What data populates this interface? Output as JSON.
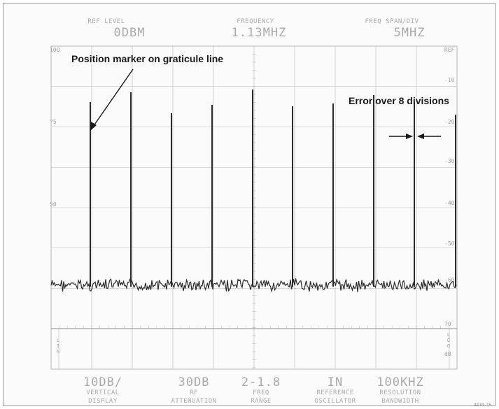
{
  "top_readouts": {
    "ref_level": {
      "label": "REF LEVEL",
      "value": "0DBM"
    },
    "frequency": {
      "label": "FREQUENCY",
      "value": "1.13MHZ"
    },
    "freq_span": {
      "label": "FREQ SPAN/DIV",
      "value": "5MHZ"
    }
  },
  "left_scale": [
    "100",
    "75",
    "50"
  ],
  "right_scale": [
    "REF",
    "-10",
    "-20",
    "-30",
    "-40",
    "-50",
    "-60",
    "-70"
  ],
  "annotations": {
    "position_marker": "Position marker on graticule line",
    "error_over": "Error over 8 divisions"
  },
  "lower_strip": {
    "left_text": "LIN",
    "right_text": "LOG",
    "right_unit": "dB",
    "right_top": "70"
  },
  "bottom_readouts": [
    {
      "value": "10DB/",
      "label1": "VERTICAL",
      "label2": "DISPLAY"
    },
    {
      "value": "30DB",
      "label1": "RF",
      "label2": "ATTENUATION"
    },
    {
      "value": "2-1.8",
      "label1": "FREQ",
      "label2": "RANGE"
    },
    {
      "value": "IN",
      "label1": "REFERENCE",
      "label2": "OSCILLATOR"
    },
    {
      "value": "100KHZ",
      "label1": "RESOLUTION",
      "label2": "BANDWIDTH"
    }
  ],
  "figure_id": "4410-15",
  "colors": {
    "trace": "#2a2a2a",
    "graticule": "#b5b5b5",
    "arrow": "#1a1a1a"
  }
}
